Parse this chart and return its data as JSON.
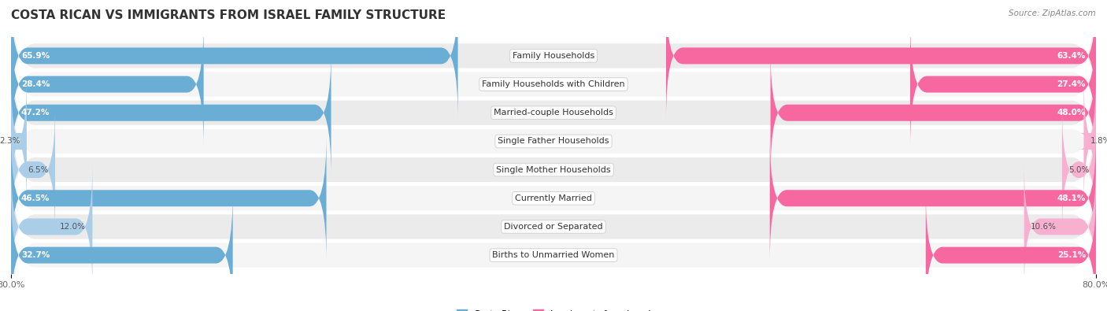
{
  "title": "COSTA RICAN VS IMMIGRANTS FROM ISRAEL FAMILY STRUCTURE",
  "source": "Source: ZipAtlas.com",
  "categories": [
    "Family Households",
    "Family Households with Children",
    "Married-couple Households",
    "Single Father Households",
    "Single Mother Households",
    "Currently Married",
    "Divorced or Separated",
    "Births to Unmarried Women"
  ],
  "left_values": [
    65.9,
    28.4,
    47.2,
    2.3,
    6.5,
    46.5,
    12.0,
    32.7
  ],
  "right_values": [
    63.4,
    27.4,
    48.0,
    1.8,
    5.0,
    48.1,
    10.6,
    25.1
  ],
  "left_color_large": "#6aaed6",
  "left_color_small": "#aacde8",
  "right_color_large": "#f768a1",
  "right_color_small": "#f7b0cf",
  "left_label": "Costa Rican",
  "right_label": "Immigrants from Israel",
  "axis_max": 80.0,
  "row_bg_odd": "#ebebeb",
  "row_bg_even": "#f5f5f5",
  "title_fontsize": 11,
  "label_fontsize": 8.0,
  "value_fontsize": 7.5,
  "axis_label_fontsize": 8.0,
  "large_threshold": 15.0
}
